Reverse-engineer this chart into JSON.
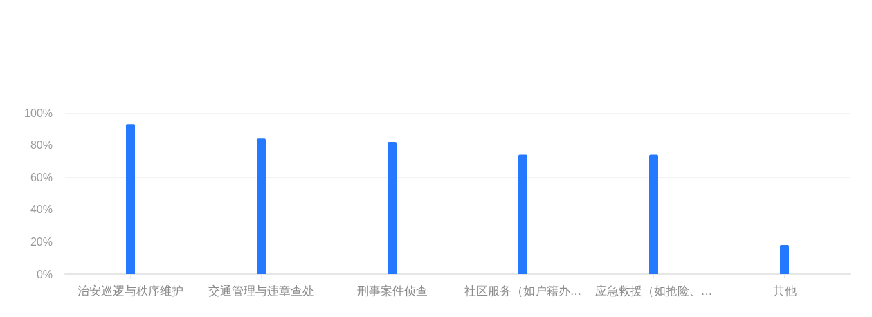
{
  "chart_data": {
    "type": "bar",
    "categories": [
      "治安巡逻与秩序维护",
      "交通管理与违章查处",
      "刑事案件侦查",
      "社区服务（如户籍办…",
      "应急救援（如抢险、…",
      "其他"
    ],
    "values": [
      93,
      84,
      82,
      74,
      74,
      18
    ],
    "color": "#2479ff",
    "ylim": [
      0,
      100
    ],
    "yticks": [
      {
        "value": 0,
        "label": "0%"
      },
      {
        "value": 20,
        "label": "20%"
      },
      {
        "value": 40,
        "label": "40%"
      },
      {
        "value": 60,
        "label": "60%"
      },
      {
        "value": 80,
        "label": "80%"
      },
      {
        "value": 100,
        "label": "100%"
      }
    ],
    "grid": "y"
  }
}
